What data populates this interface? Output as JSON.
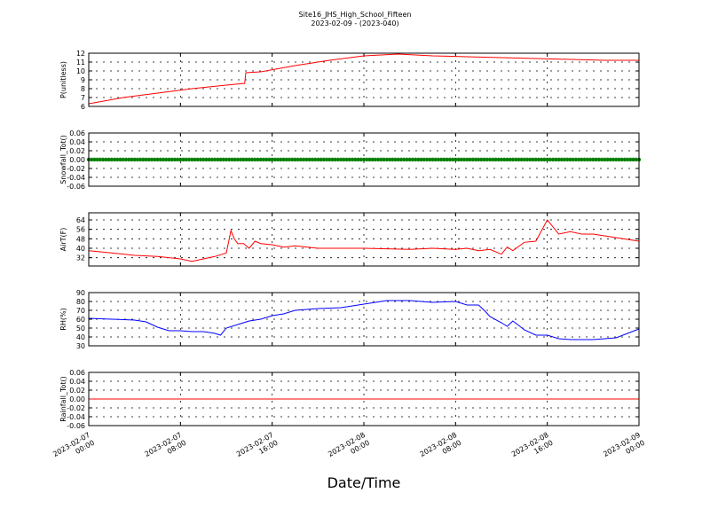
{
  "title": "Site16_JHS_High_School_Fifteen",
  "subtitle": "2023-02-09 - (2023-040)",
  "xlabel": "Date/Time",
  "x_ticks": [
    "2023-02-07\n00:00",
    "2023-02-07\n08:00",
    "2023-02-07\n16:00",
    "2023-02-08\n00:00",
    "2023-02-08\n08:00",
    "2023-02-08\n16:00",
    "2023-02-09\n00:00"
  ],
  "chart_data": [
    {
      "type": "line",
      "ylabel": "P(unitless)",
      "ylim": [
        6,
        12
      ],
      "yticks": [
        "6",
        "7",
        "8",
        "9",
        "10",
        "11",
        "12"
      ],
      "grid": true,
      "color": "#ff0000",
      "x_hours": [
        0,
        3,
        6,
        9,
        12,
        13.6,
        13.7,
        15,
        18,
        21,
        24,
        27,
        30,
        33,
        36,
        39,
        42,
        45,
        48
      ],
      "values": [
        6.3,
        7.0,
        7.5,
        8.0,
        8.4,
        8.6,
        9.8,
        9.9,
        10.6,
        11.2,
        11.7,
        11.9,
        11.7,
        11.6,
        11.5,
        11.4,
        11.3,
        11.2,
        11.2
      ]
    },
    {
      "type": "scatter",
      "ylabel": "Snowfall_Tot()",
      "ylim": [
        -0.06,
        0.06
      ],
      "yticks": [
        "-0.06",
        "-0.04",
        "-0.02",
        "0.00",
        "0.02",
        "0.04",
        "0.06"
      ],
      "grid": true,
      "color": "#008000",
      "constant_value": 0.0
    },
    {
      "type": "line",
      "ylabel": "AirT(F)",
      "ylim": [
        25,
        70
      ],
      "yticks": [
        "32",
        "40",
        "48",
        "56",
        "64"
      ],
      "grid": true,
      "color": "#ff0000",
      "x_hours": [
        0,
        2,
        4,
        6,
        8,
        9,
        10,
        11,
        12,
        12.4,
        12.7,
        13,
        13.5,
        14,
        14.5,
        15,
        16,
        17,
        18,
        20,
        24,
        28,
        30,
        32,
        33,
        34,
        35,
        36,
        36.5,
        37,
        38,
        39,
        40,
        41,
        42,
        43,
        44,
        46,
        48
      ],
      "values": [
        38,
        36,
        34,
        33,
        31,
        29,
        31,
        33,
        36,
        55,
        48,
        44,
        44,
        40,
        46,
        44,
        43,
        41,
        42,
        40,
        40,
        39,
        40,
        39,
        40,
        38,
        39,
        35,
        41,
        38,
        45,
        46,
        64,
        52,
        54,
        52,
        52,
        49,
        46
      ]
    },
    {
      "type": "line",
      "ylabel": "RH(%)",
      "ylim": [
        30,
        90
      ],
      "yticks": [
        "30",
        "40",
        "50",
        "60",
        "70",
        "80",
        "90"
      ],
      "grid": true,
      "color": "#0000ff",
      "x_hours": [
        0,
        2,
        4,
        5,
        6,
        7,
        8,
        9,
        10,
        11,
        11.5,
        12,
        13,
        14,
        15,
        16,
        17,
        18,
        20,
        22,
        24,
        26,
        28,
        30,
        32,
        33,
        34,
        34.5,
        35,
        36,
        36.5,
        37,
        38,
        39,
        40,
        41,
        42,
        44,
        46,
        48
      ],
      "values": [
        61,
        60,
        59,
        57,
        51,
        47,
        47,
        46,
        46,
        44,
        42,
        50,
        54,
        58,
        60,
        64,
        66,
        70,
        72,
        73,
        77,
        81,
        81,
        79,
        80,
        76,
        76,
        70,
        63,
        56,
        52,
        58,
        48,
        42,
        42,
        38,
        37,
        37,
        39,
        49
      ]
    },
    {
      "type": "line",
      "ylabel": "Rainfall_Tot()",
      "ylim": [
        -0.06,
        0.06
      ],
      "yticks": [
        "-0.06",
        "-0.04",
        "-0.02",
        "0.00",
        "0.02",
        "0.04",
        "0.06"
      ],
      "grid": true,
      "color": "#ff0000",
      "constant_value": 0.0
    }
  ]
}
